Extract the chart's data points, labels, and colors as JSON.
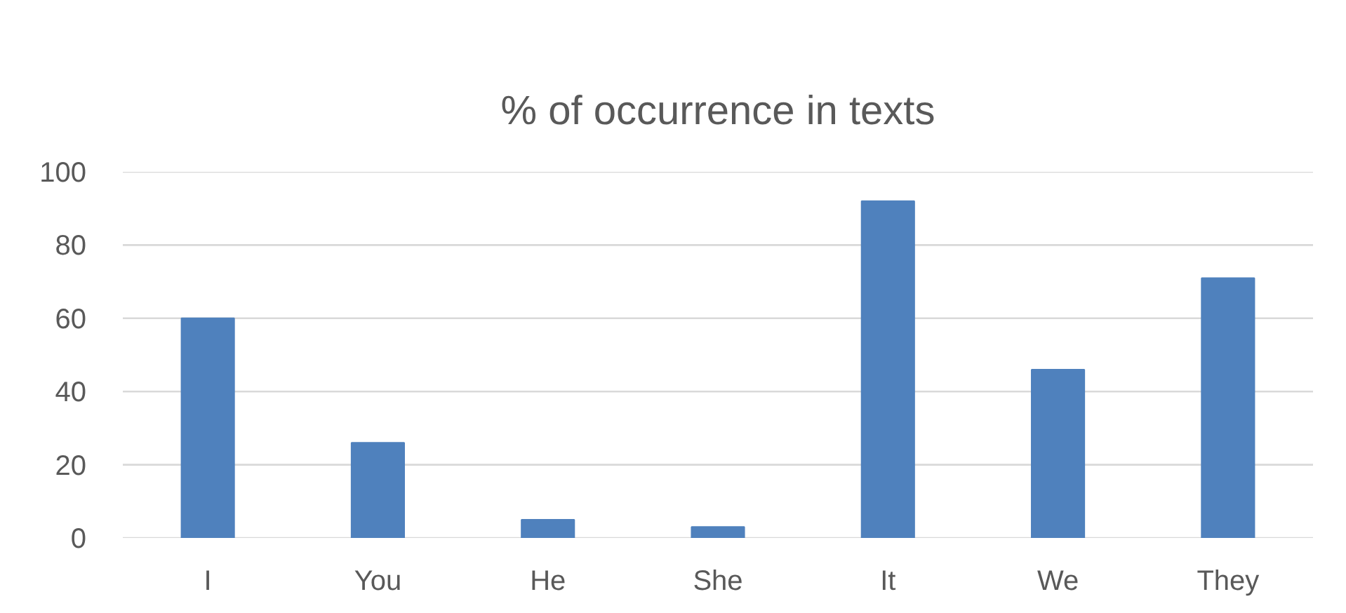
{
  "chart_data": {
    "type": "bar",
    "title": "% of occurrence in texts",
    "categories": [
      "I",
      "You",
      "He",
      "She",
      "It",
      "We",
      "They"
    ],
    "values": [
      60,
      26,
      5,
      3,
      92,
      46,
      71
    ],
    "color": "#4f81bd",
    "ylim": [
      0,
      100
    ],
    "yticks": [
      0,
      20,
      40,
      60,
      80,
      100
    ],
    "grid": "y"
  }
}
